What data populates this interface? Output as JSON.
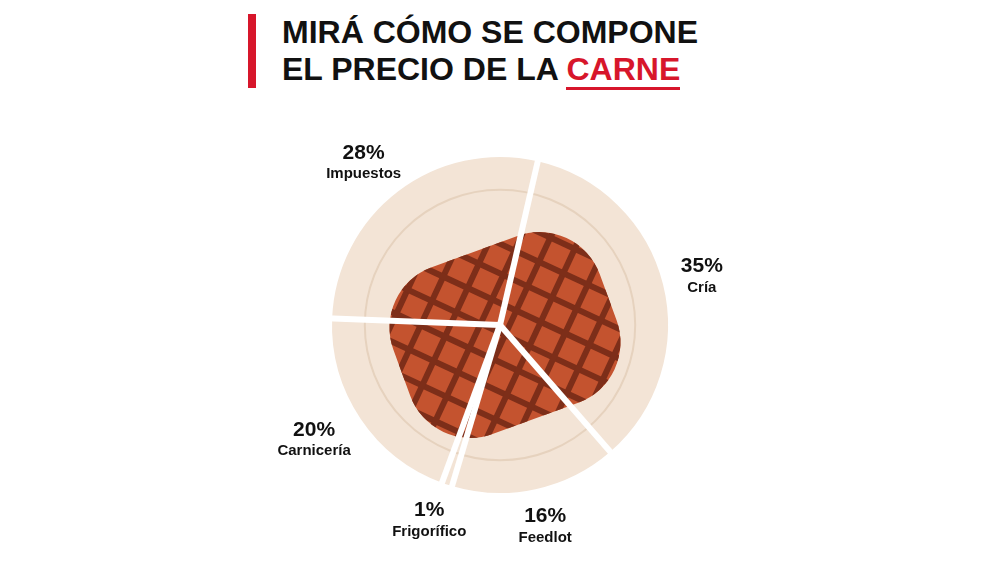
{
  "chart_data": {
    "type": "pie",
    "title": [
      "MIRÁ CÓMO SE COMPONE",
      "EL PRECIO DE LA CARNE"
    ],
    "categories": [
      "Cría",
      "Feedlot",
      "Frigorífico",
      "Carnicería",
      "Impuestos"
    ],
    "values": [
      35,
      16,
      1,
      20,
      28
    ],
    "value_labels": [
      "35%",
      "16%",
      "1%",
      "20%",
      "28%"
    ],
    "color": "#f3e4d6",
    "data_labels": true
  }
}
